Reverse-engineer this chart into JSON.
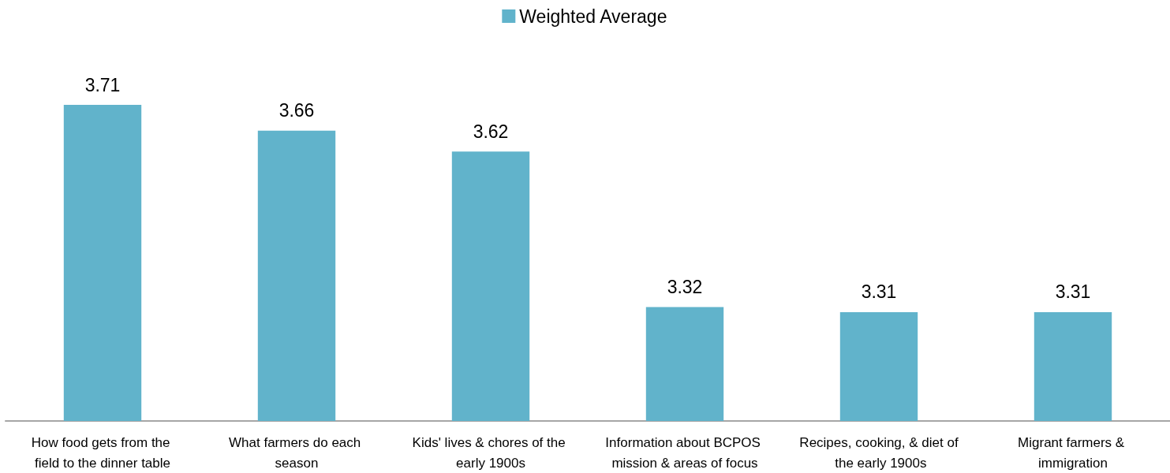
{
  "chart_data": {
    "type": "bar",
    "categories": [
      "How food gets from the field to the dinner table",
      "What farmers do each season",
      "Kids' lives & chores of the early 1900s",
      "Information about BCPOS mission & areas of focus",
      "Recipes, cooking, & diet of the early 1900s",
      "Migrant farmers & immigration"
    ],
    "series": [
      {
        "name": "Weighted Average",
        "color": "#61b3cb",
        "values": [
          3.71,
          3.66,
          3.62,
          3.32,
          3.31,
          3.31
        ]
      }
    ],
    "ylim": [
      3.1,
      3.71
    ],
    "data_labels": true,
    "legend": "top",
    "grid": false,
    "tick_labels": "x"
  }
}
